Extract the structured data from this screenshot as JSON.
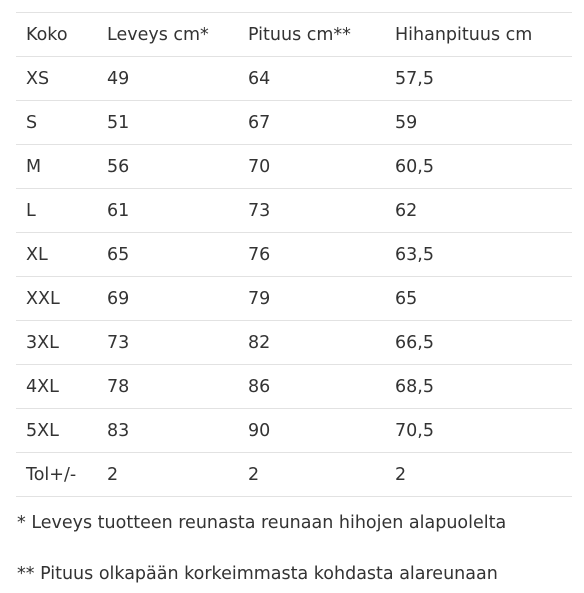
{
  "table": {
    "headers": [
      "Koko",
      "Leveys cm*",
      "Pituus cm**",
      "Hihanpituus cm"
    ],
    "rows": [
      [
        "XS",
        "49",
        "64",
        "57,5"
      ],
      [
        "S",
        "51",
        "67",
        "59"
      ],
      [
        "M",
        "56",
        "70",
        "60,5"
      ],
      [
        "L",
        "61",
        "73",
        "62"
      ],
      [
        "XL",
        "65",
        "76",
        "63,5"
      ],
      [
        "XXL",
        "69",
        "79",
        "65"
      ],
      [
        "3XL",
        "73",
        "82",
        "66,5"
      ],
      [
        "4XL",
        "78",
        "86",
        "68,5"
      ],
      [
        "5XL",
        "83",
        "90",
        "70,5"
      ],
      [
        "Tol+/-",
        "2",
        "2",
        "2"
      ]
    ]
  },
  "notes": {
    "width_note": "* Leveys tuotteen reunasta reunaan hihojen alapuolelta",
    "length_note": "** Pituus olkapään korkeimmasta kohdasta alareunaan"
  },
  "colors": {
    "text": "#333333",
    "row_border": "#e2e2e2",
    "background": "#ffffff"
  }
}
